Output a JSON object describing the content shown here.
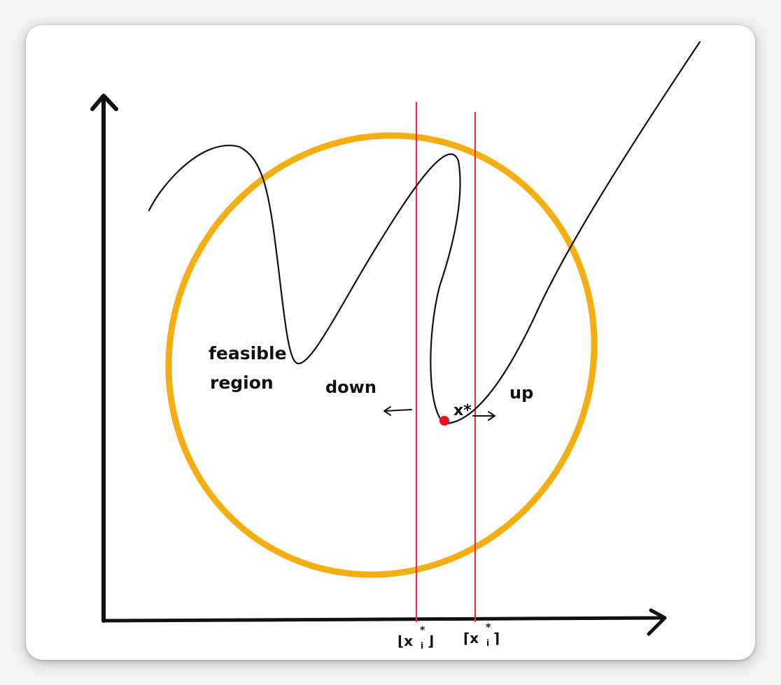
{
  "labels": {
    "feasible_line1": "feasible",
    "feasible_line2": "region",
    "down": "down",
    "up": "up",
    "optimum": "x*",
    "floor_label": "⌊x",
    "floor_sub": "i",
    "floor_sup": "*",
    "floor_close": "⌋",
    "ceil_label": "⌈x",
    "ceil_sub": "i",
    "ceil_sup": "*",
    "ceil_close": "⌉"
  },
  "colors": {
    "curve": "#111111",
    "axes": "#111111",
    "feasible_region": "#f4ae12",
    "bound_lines": "#e8323a",
    "optimum_point": "#e8101c",
    "card_background": "#ffffff"
  }
}
